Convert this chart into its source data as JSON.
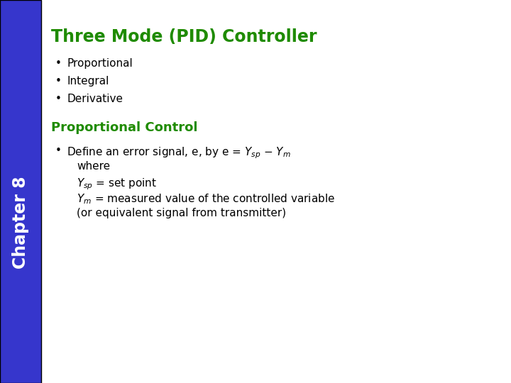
{
  "title": "Three Mode (PID) Controller",
  "title_color": "#1F8B00",
  "sidebar_color": "#3636CC",
  "sidebar_text": "Chapter 8",
  "sidebar_text_color": "#FFFFFF",
  "background_color": "#FFFFFF",
  "bullet_items": [
    "Proportional",
    "Integral",
    "Derivative"
  ],
  "section2_title": "Proportional Control",
  "section2_color": "#1F8B00",
  "body_text_color": "#000000",
  "figsize": [
    7.2,
    5.4
  ],
  "dpi": 100
}
